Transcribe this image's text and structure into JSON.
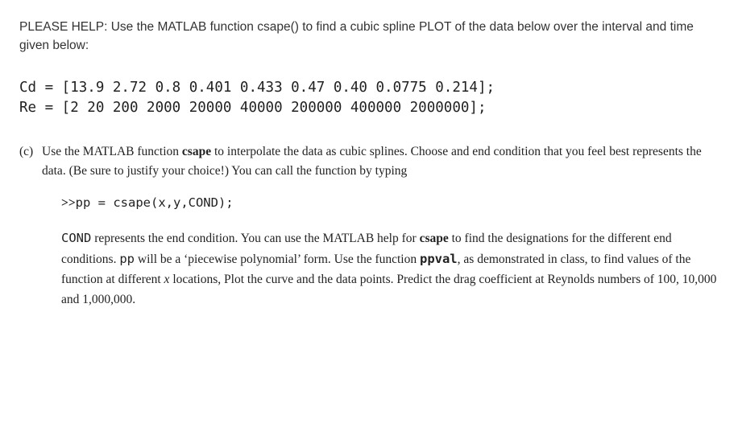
{
  "header": "PLEASE HELP: Use the MATLAB function csape() to find a cubic spline PLOT of the data below over the interval and time given below:",
  "code": {
    "line1": "Cd = [13.9 2.72 0.8 0.401 0.433 0.47 0.40 0.0775 0.214];",
    "line2": "Re = [2 20 200 2000 20000 40000 200000 400000 2000000];"
  },
  "part": {
    "label": "(c)",
    "t1": "Use the MATLAB function ",
    "csape": "csape",
    "t2": " to interpolate the data as cubic splines. Choose and end condition that you feel best represents the data. (Be sure to justify your choice!) You can call the function by typing"
  },
  "cmd": {
    "prompt": ">>",
    "text": "pp = csape(x,y,COND);"
  },
  "para": {
    "cond": "COND",
    "t1": " represents the end condition. You can use the MATLAB help for ",
    "csape": "csape",
    "t2": " to find the designations for the different end conditions. ",
    "pp": "pp",
    "t3": " will be a ‘piecewise polynomial’ form. Use the function ",
    "ppval": "ppval",
    "t4": ", as demonstrated in class, to find values of the function at different ",
    "x": "x",
    "t5": " locations, Plot the curve and the data points. Predict the drag coefficient at Reynolds numbers of 100, 10,000 and 1,000,000."
  }
}
